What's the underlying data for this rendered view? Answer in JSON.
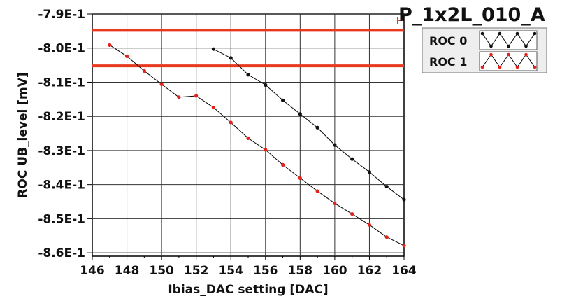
{
  "chart_data": {
    "type": "line",
    "title": "P_1x2L_010_A",
    "xlabel": "Ibias_DAC setting [DAC]",
    "ylabel": "ROC UB_level [mV]",
    "xlim": [
      146,
      164
    ],
    "ylim": [
      -0.861,
      -0.79
    ],
    "x_ticks": [
      146,
      148,
      150,
      152,
      154,
      156,
      158,
      160,
      162,
      164
    ],
    "x_tick_labels": [
      "146",
      "148",
      "150",
      "152",
      "154",
      "156",
      "158",
      "160",
      "162",
      "164"
    ],
    "y_ticks": [
      -0.79,
      -0.8,
      -0.81,
      -0.82,
      -0.83,
      -0.84,
      -0.85,
      -0.86
    ],
    "y_tick_labels": [
      "-7.9E-1",
      "-8.0E-1",
      "-8.1E-1",
      "-8.2E-1",
      "-8.3E-1",
      "-8.4E-1",
      "-8.5E-1",
      "-8.6E-1"
    ],
    "grid": true,
    "legend_position": "top-right",
    "reference_lines": [
      {
        "y": -0.7948,
        "color": "#e8391f"
      },
      {
        "y": -0.8052,
        "color": "#e8391f"
      }
    ],
    "series": [
      {
        "name": "ROC 0",
        "color": "#111111",
        "x": [
          153,
          154,
          155,
          156,
          157,
          158,
          159,
          160,
          161,
          162,
          163,
          164
        ],
        "y": [
          -0.8003,
          -0.8029,
          -0.8078,
          -0.8108,
          -0.8153,
          -0.8193,
          -0.8233,
          -0.8284,
          -0.8325,
          -0.8363,
          -0.8406,
          -0.8444
        ]
      },
      {
        "name": "ROC 1",
        "color": "#e8201a",
        "x": [
          147,
          148,
          149,
          150,
          151,
          152,
          153,
          154,
          155,
          156,
          157,
          158,
          159,
          160,
          161,
          162,
          163,
          164
        ],
        "y": [
          -0.7991,
          -0.8024,
          -0.8067,
          -0.8106,
          -0.8144,
          -0.814,
          -0.8174,
          -0.8218,
          -0.8264,
          -0.8298,
          -0.8342,
          -0.8381,
          -0.8419,
          -0.8455,
          -0.8486,
          -0.8518,
          -0.8554,
          -0.8579
        ]
      }
    ]
  }
}
